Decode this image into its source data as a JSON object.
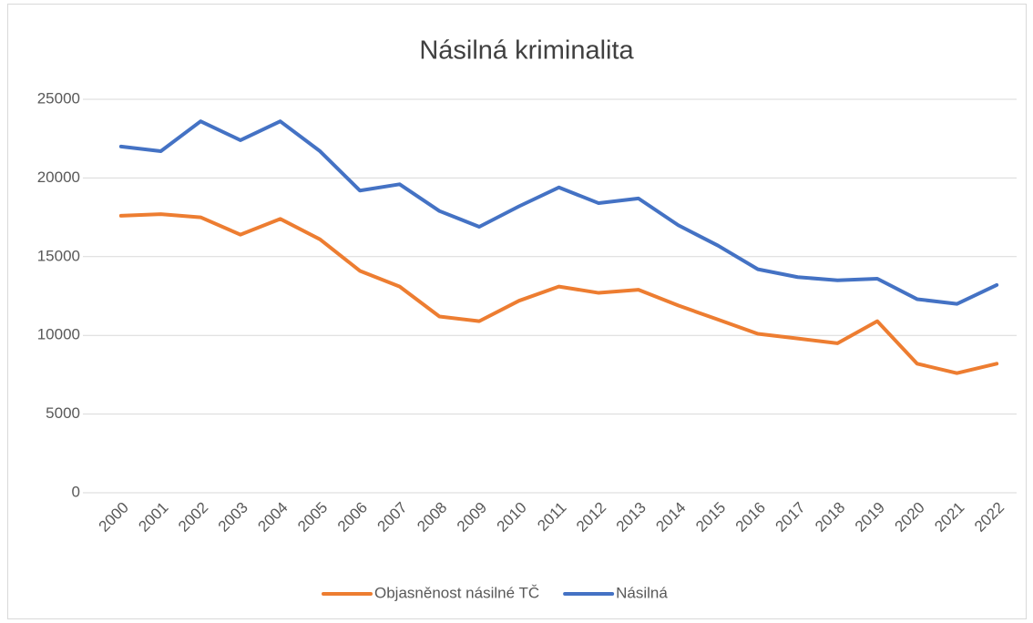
{
  "chart_data": {
    "type": "line",
    "title": "Násilná kriminalita",
    "categories": [
      "2000",
      "2001",
      "2002",
      "2003",
      "2004",
      "2005",
      "2006",
      "2007",
      "2008",
      "2009",
      "2010",
      "2011",
      "2012",
      "2013",
      "2014",
      "2015",
      "2016",
      "2017",
      "2018",
      "2019",
      "2020",
      "2021",
      "2022"
    ],
    "series": [
      {
        "name": "Objasněnost násilné TČ",
        "color": "#ed7d31",
        "values": [
          17600,
          17700,
          17500,
          16400,
          17400,
          16100,
          14100,
          13100,
          11200,
          10900,
          12200,
          13100,
          12700,
          12900,
          11900,
          11000,
          10100,
          9800,
          9500,
          10900,
          8200,
          7600,
          8200
        ]
      },
      {
        "name": "Násilná",
        "color": "#4472c4",
        "values": [
          22000,
          21700,
          23600,
          22400,
          23600,
          21700,
          19200,
          19600,
          17900,
          16900,
          18200,
          19400,
          18400,
          18700,
          17000,
          15700,
          14200,
          13700,
          13500,
          13600,
          12300,
          12000,
          13200
        ]
      }
    ],
    "ylim": [
      0,
      25000
    ],
    "yticks": [
      0,
      5000,
      10000,
      15000,
      20000,
      25000
    ],
    "grid": true,
    "legend": "bottom"
  }
}
